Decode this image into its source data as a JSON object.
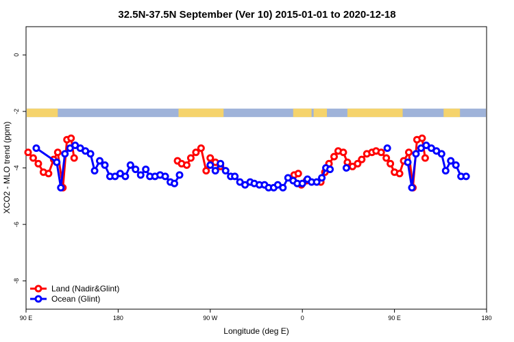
{
  "chart_data": {
    "type": "line",
    "title": "32.5N-37.5N September (Ver 10)   2015-01-01 to 2020-12-18",
    "xlabel": "Longitude (deg E)",
    "ylabel": "XCO2 - MLO trend (ppm)",
    "xlim": [
      90,
      540
    ],
    "ylim": [
      -9,
      1
    ],
    "x_ticks": [
      90,
      180,
      270,
      360,
      450,
      540
    ],
    "x_tick_labels": [
      "90 E",
      "180",
      "90 W",
      "0",
      "90 E",
      "180"
    ],
    "y_ticks": [
      0,
      -2,
      -4,
      -6,
      -8
    ],
    "y_tick_labels": [
      "0",
      "-2",
      "-4",
      "-6",
      "-8"
    ],
    "land_band": {
      "y_from": -2.2,
      "y_to": -1.9,
      "ocean_color": "#9fb3d9",
      "land_color": "#f5d36c",
      "land_ranges": [
        [
          90,
          121
        ],
        [
          239,
          283
        ],
        [
          351,
          369
        ],
        [
          371,
          384
        ],
        [
          404,
          458
        ],
        [
          498,
          514
        ]
      ]
    },
    "series": [
      {
        "name": "Land (Nadir&Glint)",
        "color": "#ff0000",
        "segments": [
          [
            [
              92,
              -3.45
            ],
            [
              97,
              -3.65
            ],
            [
              102,
              -3.85
            ],
            [
              107,
              -4.15
            ],
            [
              112,
              -4.2
            ],
            [
              117,
              -3.7
            ],
            [
              121,
              -3.45
            ],
            [
              126,
              -4.7
            ],
            [
              130,
              -3.0
            ],
            [
              134,
              -2.95
            ],
            [
              137,
              -3.65
            ]
          ],
          [
            [
              238,
              -3.75
            ],
            [
              242,
              -3.85
            ],
            [
              247,
              -3.9
            ],
            [
              251,
              -3.65
            ],
            [
              256,
              -3.45
            ],
            [
              261,
              -3.3
            ],
            [
              266,
              -4.1
            ],
            [
              270,
              -3.65
            ],
            [
              275,
              -3.8
            ],
            [
              280,
              -3.95
            ]
          ],
          [
            [
              352,
              -4.25
            ],
            [
              356,
              -4.2
            ]
          ],
          [
            [
              359,
              -4.6
            ],
            [
              364,
              -4.45
            ]
          ],
          [
            [
              378,
              -4.5
            ],
            [
              382,
              -4.15
            ],
            [
              386,
              -3.85
            ],
            [
              391,
              -3.6
            ],
            [
              395,
              -3.4
            ],
            [
              400,
              -3.45
            ],
            [
              404,
              -3.8
            ],
            [
              409,
              -3.95
            ],
            [
              414,
              -3.85
            ],
            [
              418,
              -3.7
            ],
            [
              423,
              -3.5
            ],
            [
              428,
              -3.45
            ],
            [
              432,
              -3.4
            ],
            [
              437,
              -3.45
            ],
            [
              442,
              -3.65
            ],
            [
              446,
              -3.85
            ],
            [
              450,
              -4.15
            ],
            [
              455,
              -4.2
            ],
            [
              459,
              -3.75
            ],
            [
              464,
              -3.45
            ],
            [
              468,
              -4.7
            ],
            [
              472,
              -3.0
            ],
            [
              477,
              -2.95
            ],
            [
              480,
              -3.65
            ]
          ]
        ]
      },
      {
        "name": "Ocean (Glint)",
        "color": "#0000ff",
        "segments": [
          [
            [
              100,
              -3.3
            ],
            [
              120,
              -3.8
            ],
            [
              124,
              -4.7
            ],
            [
              128,
              -3.5
            ],
            [
              133,
              -3.3
            ],
            [
              138,
              -3.2
            ],
            [
              143,
              -3.3
            ],
            [
              148,
              -3.4
            ],
            [
              153,
              -3.5
            ],
            [
              157,
              -4.1
            ],
            [
              162,
              -3.75
            ],
            [
              167,
              -3.9
            ],
            [
              172,
              -4.3
            ],
            [
              177,
              -4.3
            ],
            [
              182,
              -4.2
            ],
            [
              187,
              -4.3
            ],
            [
              192,
              -3.9
            ],
            [
              197,
              -4.05
            ],
            [
              202,
              -4.25
            ],
            [
              207,
              -4.05
            ],
            [
              211,
              -4.3
            ],
            [
              216,
              -4.3
            ],
            [
              221,
              -4.25
            ],
            [
              226,
              -4.3
            ],
            [
              231,
              -4.5
            ],
            [
              235,
              -4.55
            ],
            [
              240,
              -4.25
            ]
          ],
          [
            [
              270,
              -3.9
            ],
            [
              275,
              -4.1
            ],
            [
              280,
              -3.85
            ],
            [
              285,
              -4.1
            ],
            [
              290,
              -4.3
            ],
            [
              294,
              -4.3
            ],
            [
              299,
              -4.5
            ],
            [
              304,
              -4.6
            ],
            [
              309,
              -4.5
            ],
            [
              313,
              -4.55
            ],
            [
              318,
              -4.6
            ],
            [
              323,
              -4.6
            ],
            [
              327,
              -4.7
            ],
            [
              332,
              -4.7
            ],
            [
              336,
              -4.6
            ],
            [
              341,
              -4.7
            ],
            [
              346,
              -4.35
            ],
            [
              351,
              -4.45
            ],
            [
              355,
              -4.55
            ],
            [
              360,
              -4.55
            ],
            [
              365,
              -4.4
            ],
            [
              369,
              -4.5
            ],
            [
              374,
              -4.5
            ],
            [
              379,
              -4.35
            ],
            [
              383,
              -4.0
            ],
            [
              387,
              -4.05
            ]
          ],
          [
            [
              403,
              -4.0
            ]
          ],
          [
            [
              443,
              -3.3
            ]
          ],
          [
            [
              463,
              -3.8
            ],
            [
              467,
              -4.7
            ],
            [
              471,
              -3.5
            ],
            [
              476,
              -3.3
            ],
            [
              481,
              -3.2
            ],
            [
              486,
              -3.3
            ],
            [
              491,
              -3.4
            ],
            [
              496,
              -3.5
            ],
            [
              500,
              -4.1
            ],
            [
              505,
              -3.75
            ],
            [
              510,
              -3.9
            ],
            [
              515,
              -4.3
            ],
            [
              520,
              -4.3
            ]
          ]
        ]
      }
    ],
    "legend": {
      "position": "bottom-left",
      "entries": [
        "Land (Nadir&Glint)",
        "Ocean (Glint)"
      ]
    }
  }
}
